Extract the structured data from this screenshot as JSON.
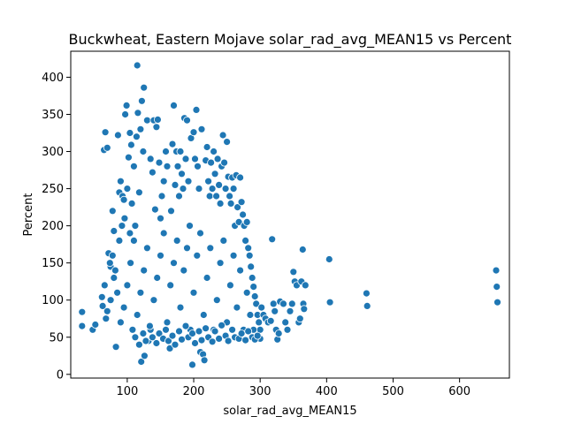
{
  "chart_data": {
    "type": "scatter",
    "title": "Buckwheat, Eastern Mojave solar_rad_avg_MEAN15 vs Percent",
    "xlabel": "solar_rad_avg_MEAN15",
    "ylabel": "Percent",
    "xlim": [
      15,
      675
    ],
    "ylim": [
      -5,
      435
    ],
    "xticks": [
      100,
      200,
      300,
      400,
      500,
      600
    ],
    "yticks": [
      0,
      50,
      100,
      150,
      200,
      250,
      300,
      350,
      400
    ],
    "grid": false,
    "marker_color": "#1f77b4",
    "marker_edge_color": "#ffffff",
    "series": [
      {
        "points": [
          [
            32,
            84
          ],
          [
            32,
            65
          ],
          [
            48,
            60
          ],
          [
            52,
            67
          ],
          [
            62,
            104
          ],
          [
            63,
            92
          ],
          [
            65,
            302
          ],
          [
            67,
            326
          ],
          [
            70,
            305
          ],
          [
            72,
            163
          ],
          [
            75,
            145
          ],
          [
            78,
            220
          ],
          [
            80,
            193
          ],
          [
            83,
            37
          ],
          [
            86,
            322
          ],
          [
            88,
            245
          ],
          [
            90,
            260
          ],
          [
            93,
            240
          ],
          [
            95,
            235
          ],
          [
            97,
            350
          ],
          [
            99,
            362
          ],
          [
            100,
            250
          ],
          [
            102,
            292
          ],
          [
            104,
            325
          ],
          [
            106,
            309
          ],
          [
            107,
            230
          ],
          [
            110,
            280
          ],
          [
            112,
            200
          ],
          [
            114,
            320
          ],
          [
            115,
            416
          ],
          [
            116,
            352
          ],
          [
            118,
            245
          ],
          [
            120,
            330
          ],
          [
            121,
            17
          ],
          [
            122,
            368
          ],
          [
            124,
            300
          ],
          [
            125,
            386
          ],
          [
            126,
            25
          ],
          [
            130,
            342
          ],
          [
            132,
            45
          ],
          [
            135,
            290
          ],
          [
            138,
            272
          ],
          [
            140,
            342
          ],
          [
            142,
            222
          ],
          [
            144,
            333
          ],
          [
            146,
            343
          ],
          [
            148,
            285
          ],
          [
            150,
            210
          ],
          [
            152,
            240
          ],
          [
            155,
            260
          ],
          [
            158,
            300
          ],
          [
            160,
            280
          ],
          [
            164,
            35
          ],
          [
            166,
            220
          ],
          [
            168,
            310
          ],
          [
            170,
            362
          ],
          [
            172,
            255
          ],
          [
            174,
            300
          ],
          [
            176,
            280
          ],
          [
            178,
            240
          ],
          [
            180,
            300
          ],
          [
            182,
            270
          ],
          [
            184,
            250
          ],
          [
            186,
            345
          ],
          [
            188,
            290
          ],
          [
            190,
            342
          ],
          [
            192,
            260
          ],
          [
            194,
            200
          ],
          [
            196,
            318
          ],
          [
            198,
            13
          ],
          [
            200,
            326
          ],
          [
            202,
            290
          ],
          [
            204,
            356
          ],
          [
            206,
            280
          ],
          [
            208,
            250
          ],
          [
            210,
            30
          ],
          [
            212,
            330
          ],
          [
            214,
            27
          ],
          [
            216,
            19
          ],
          [
            218,
            288
          ],
          [
            220,
            306
          ],
          [
            222,
            260
          ],
          [
            224,
            240
          ],
          [
            226,
            285
          ],
          [
            228,
            250
          ],
          [
            230,
            300
          ],
          [
            232,
            270
          ],
          [
            234,
            240
          ],
          [
            236,
            290
          ],
          [
            238,
            255
          ],
          [
            240,
            230
          ],
          [
            242,
            280
          ],
          [
            244,
            322
          ],
          [
            246,
            285
          ],
          [
            248,
            250
          ],
          [
            250,
            313
          ],
          [
            252,
            266
          ],
          [
            254,
            240
          ],
          [
            256,
            230
          ],
          [
            258,
            265
          ],
          [
            260,
            250
          ],
          [
            262,
            200
          ],
          [
            264,
            268
          ],
          [
            266,
            225
          ],
          [
            268,
            205
          ],
          [
            270,
            265
          ],
          [
            272,
            232
          ],
          [
            274,
            215
          ],
          [
            276,
            200
          ],
          [
            278,
            180
          ],
          [
            280,
            205
          ],
          [
            282,
            170
          ],
          [
            284,
            160
          ],
          [
            286,
            145
          ],
          [
            288,
            130
          ],
          [
            290,
            118
          ],
          [
            292,
            105
          ],
          [
            294,
            95
          ],
          [
            296,
            80
          ],
          [
            298,
            70
          ],
          [
            300,
            60
          ],
          [
            302,
            90
          ],
          [
            305,
            80
          ],
          [
            308,
            75
          ],
          [
            312,
            70
          ],
          [
            316,
            72
          ],
          [
            318,
            182
          ],
          [
            320,
            95
          ],
          [
            322,
            85
          ],
          [
            324,
            60
          ],
          [
            326,
            47
          ],
          [
            328,
            55
          ],
          [
            330,
            98
          ],
          [
            335,
            95
          ],
          [
            338,
            70
          ],
          [
            341,
            60
          ],
          [
            345,
            85
          ],
          [
            348,
            95
          ],
          [
            350,
            138
          ],
          [
            352,
            125
          ],
          [
            355,
            120
          ],
          [
            358,
            70
          ],
          [
            360,
            75
          ],
          [
            362,
            125
          ],
          [
            364,
            168
          ],
          [
            365,
            95
          ],
          [
            366,
            88
          ],
          [
            368,
            120
          ],
          [
            404,
            155
          ],
          [
            405,
            97
          ],
          [
            460,
            109
          ],
          [
            461,
            92
          ],
          [
            655,
            140
          ],
          [
            656,
            118
          ],
          [
            657,
            97
          ],
          [
            95,
            90
          ],
          [
            100,
            120
          ],
          [
            105,
            150
          ],
          [
            110,
            180
          ],
          [
            115,
            80
          ],
          [
            120,
            110
          ],
          [
            125,
            140
          ],
          [
            130,
            170
          ],
          [
            135,
            60
          ],
          [
            140,
            100
          ],
          [
            145,
            130
          ],
          [
            150,
            160
          ],
          [
            155,
            190
          ],
          [
            160,
            70
          ],
          [
            165,
            120
          ],
          [
            170,
            150
          ],
          [
            175,
            180
          ],
          [
            180,
            90
          ],
          [
            185,
            140
          ],
          [
            190,
            170
          ],
          [
            195,
            60
          ],
          [
            200,
            110
          ],
          [
            205,
            160
          ],
          [
            210,
            190
          ],
          [
            215,
            80
          ],
          [
            220,
            130
          ],
          [
            225,
            170
          ],
          [
            230,
            60
          ],
          [
            235,
            100
          ],
          [
            240,
            150
          ],
          [
            245,
            180
          ],
          [
            250,
            70
          ],
          [
            255,
            120
          ],
          [
            260,
            160
          ],
          [
            265,
            90
          ],
          [
            270,
            140
          ],
          [
            275,
            60
          ],
          [
            280,
            110
          ],
          [
            285,
            80
          ],
          [
            290,
            60
          ],
          [
            295,
            50
          ],
          [
            300,
            48
          ],
          [
            90,
            70
          ],
          [
            85,
            110
          ],
          [
            80,
            130
          ],
          [
            75,
            100
          ],
          [
            70,
            85
          ],
          [
            68,
            75
          ],
          [
            66,
            120
          ],
          [
            74,
            150
          ],
          [
            78,
            160
          ],
          [
            82,
            140
          ],
          [
            88,
            180
          ],
          [
            92,
            200
          ],
          [
            96,
            210
          ],
          [
            104,
            190
          ],
          [
            108,
            60
          ],
          [
            112,
            50
          ],
          [
            118,
            40
          ],
          [
            124,
            55
          ],
          [
            128,
            45
          ],
          [
            134,
            65
          ],
          [
            138,
            50
          ],
          [
            144,
            42
          ],
          [
            148,
            55
          ],
          [
            154,
            48
          ],
          [
            158,
            60
          ],
          [
            162,
            45
          ],
          [
            168,
            52
          ],
          [
            172,
            40
          ],
          [
            178,
            58
          ],
          [
            182,
            47
          ],
          [
            188,
            65
          ],
          [
            192,
            50
          ],
          [
            198,
            55
          ],
          [
            202,
            42
          ],
          [
            208,
            58
          ],
          [
            212,
            46
          ],
          [
            218,
            62
          ],
          [
            222,
            50
          ],
          [
            228,
            44
          ],
          [
            232,
            58
          ],
          [
            238,
            48
          ],
          [
            242,
            66
          ],
          [
            248,
            52
          ],
          [
            252,
            45
          ],
          [
            258,
            60
          ],
          [
            262,
            50
          ],
          [
            268,
            48
          ],
          [
            272,
            55
          ],
          [
            278,
            46
          ],
          [
            282,
            58
          ],
          [
            288,
            50
          ],
          [
            292,
            47
          ],
          [
            296,
            52
          ]
        ]
      }
    ]
  }
}
